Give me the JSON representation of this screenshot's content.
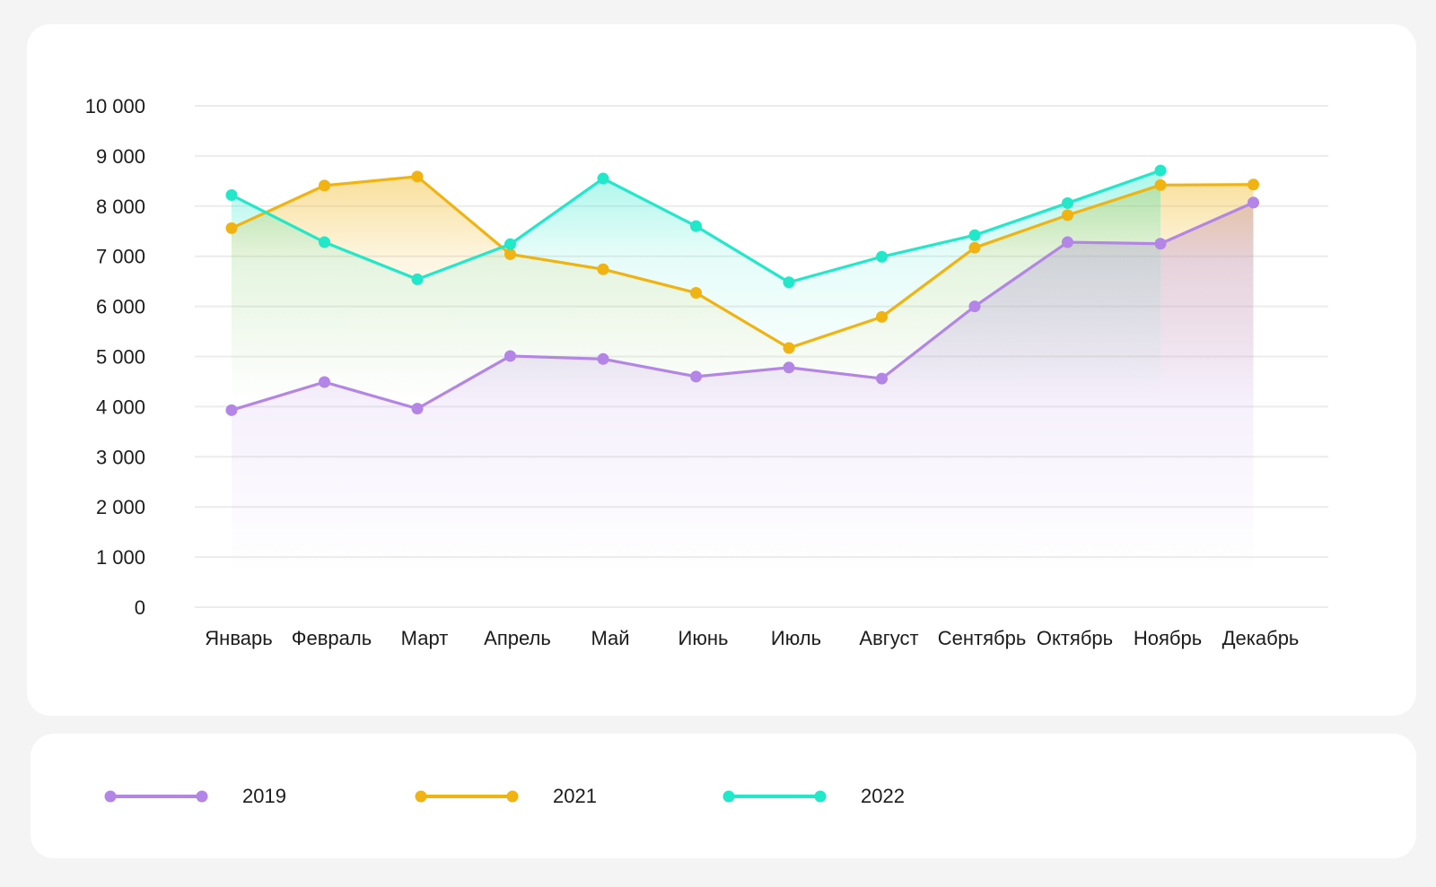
{
  "chart_data": {
    "type": "line",
    "categories": [
      "Январь",
      "Февраль",
      "Март",
      "Апрель",
      "Май",
      "Июнь",
      "Июль",
      "Август",
      "Сентябрь",
      "Октябрь",
      "Ноябрь",
      "Декабрь"
    ],
    "y_ticks": [
      "0",
      "1 000",
      "2 000",
      "3 000",
      "4 000",
      "5 000",
      "6 000",
      "7 000",
      "8 000",
      "9 000",
      "10 000"
    ],
    "ylim": [
      0,
      10000
    ],
    "grid": true,
    "legend_position": "bottom",
    "series": [
      {
        "name": "2019",
        "color": "#b285e6",
        "values": [
          3930,
          4490,
          3960,
          5010,
          4950,
          4600,
          4780,
          4560,
          6000,
          7280,
          7250,
          8070
        ]
      },
      {
        "name": "2021",
        "color": "#f0b311",
        "values": [
          7560,
          8410,
          8590,
          7040,
          6740,
          6270,
          5170,
          5790,
          7170,
          7820,
          8420,
          8430
        ]
      },
      {
        "name": "2022",
        "color": "#21e8c8",
        "values": [
          8220,
          7280,
          6540,
          7240,
          8550,
          7600,
          6480,
          6990,
          7420,
          8060,
          8710,
          null
        ]
      }
    ]
  }
}
